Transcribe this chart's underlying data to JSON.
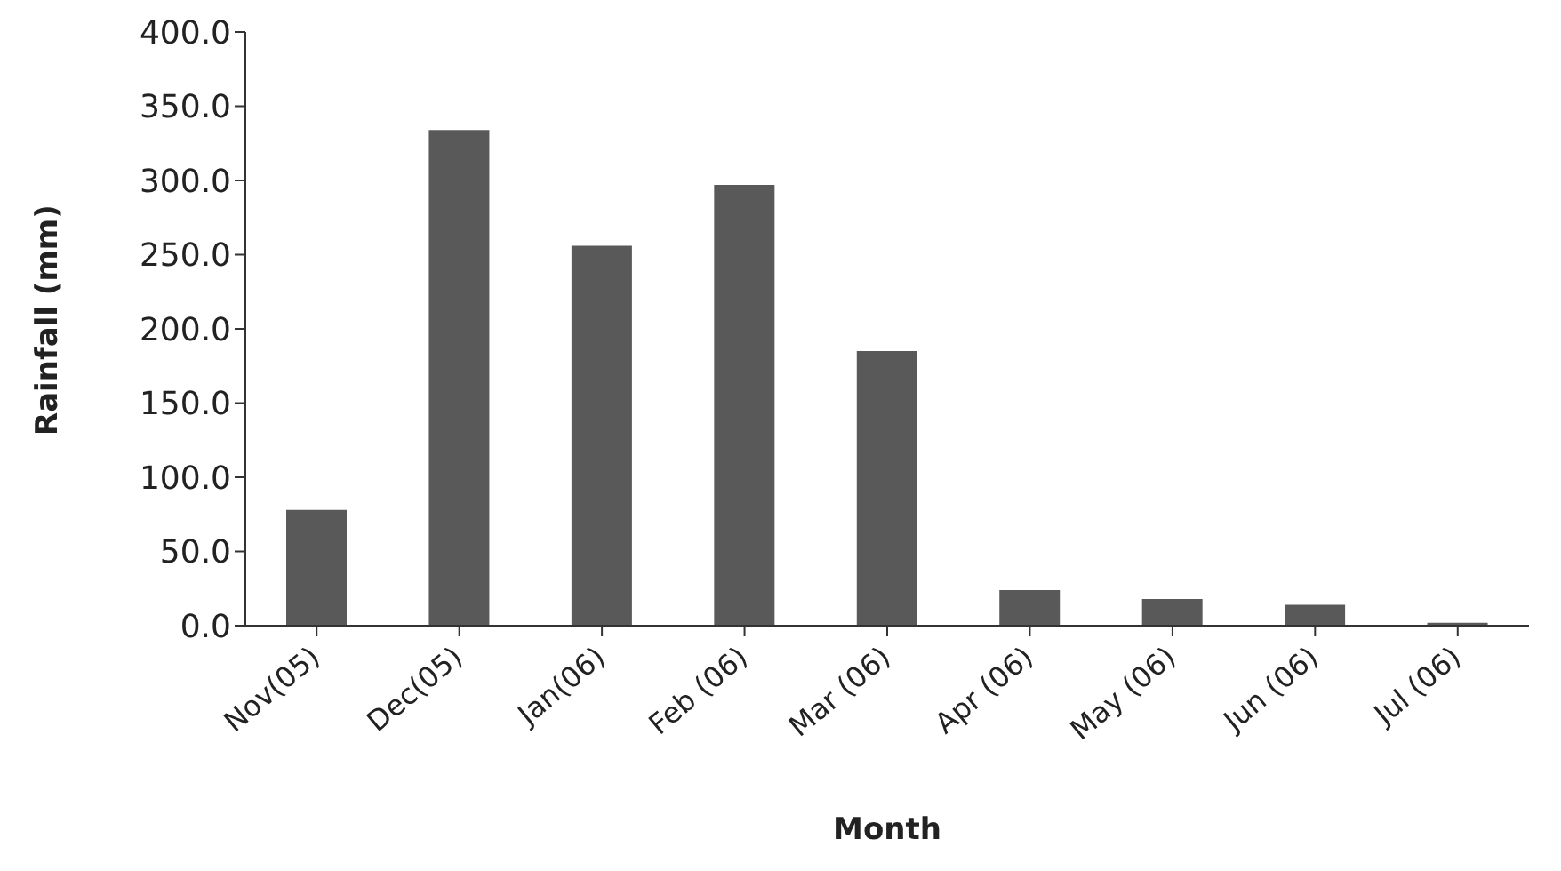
{
  "chart_data": {
    "type": "bar",
    "xlabel": "Month",
    "ylabel": "Rainfall (mm)",
    "categories": [
      "Nov(05)",
      "Dec(05)",
      "Jan(06)",
      "Feb (06)",
      "Mar (06)",
      "Apr (06)",
      "May (06)",
      "Jun (06)",
      "Jul (06)"
    ],
    "values": [
      78,
      334,
      256,
      297,
      185,
      24,
      18,
      14,
      2
    ],
    "color": "#595959",
    "ylim": [
      0,
      400
    ],
    "yticks": [
      {
        "value": 0,
        "label": "0.0"
      },
      {
        "value": 50,
        "label": "50.0"
      },
      {
        "value": 100,
        "label": "100.0"
      },
      {
        "value": 150,
        "label": "150.0"
      },
      {
        "value": 200,
        "label": "200.0"
      },
      {
        "value": 250,
        "label": "250.0"
      },
      {
        "value": 300,
        "label": "300.0"
      },
      {
        "value": 350,
        "label": "350.0"
      },
      {
        "value": 400,
        "label": "400.0"
      }
    ],
    "grid": false,
    "legend": false
  }
}
